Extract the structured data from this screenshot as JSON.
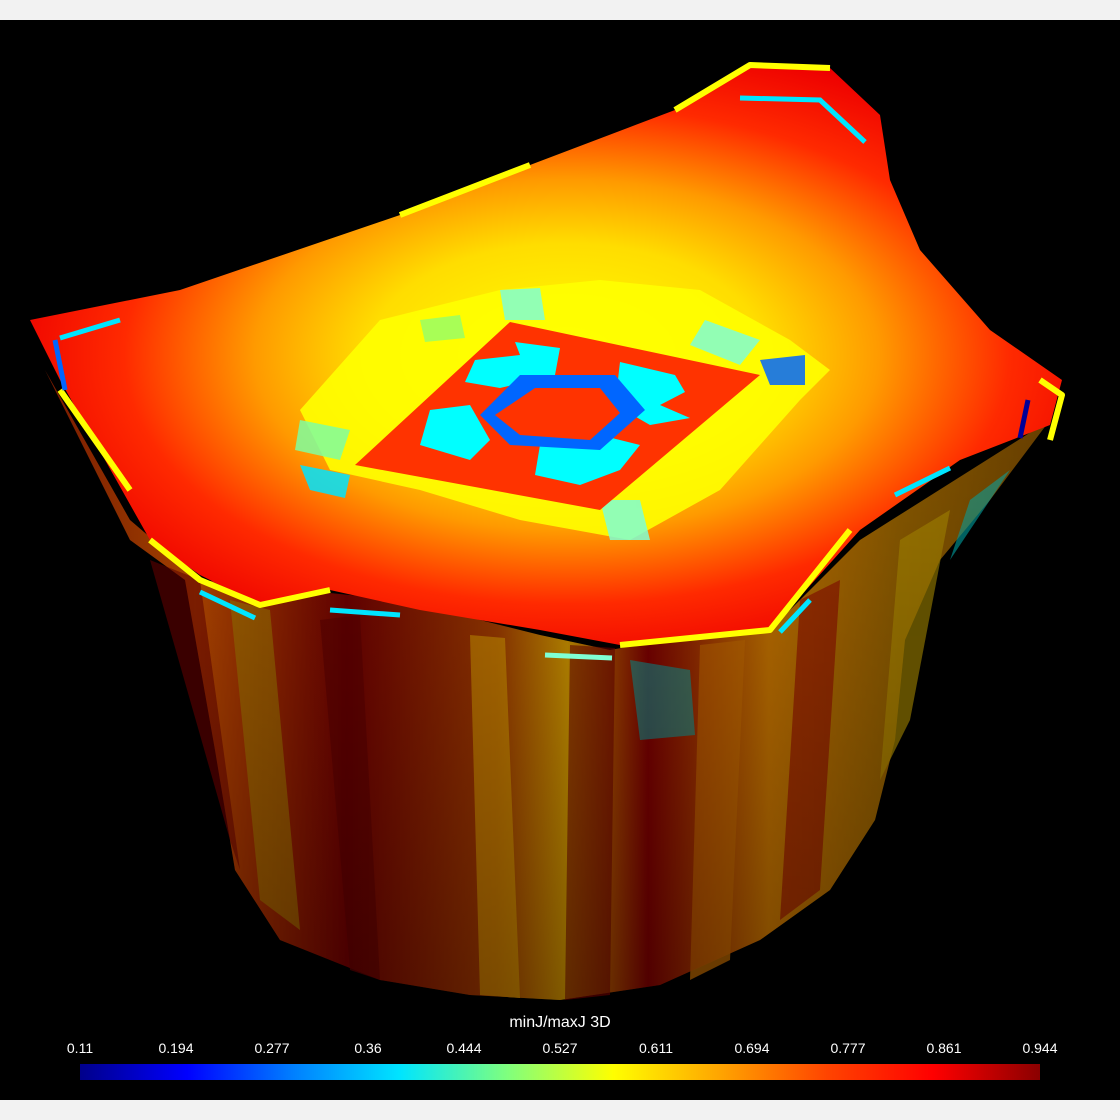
{
  "viewport": {
    "background": "#000000",
    "chrome_background": "#f2f2f2"
  },
  "mesh": {
    "description_type": "3D hexahedral mesh colored by element quality",
    "palette": {
      "dark_red": "#8b0000",
      "red": "#ff0000",
      "orange_red": "#ff4000",
      "orange": "#ff8c00",
      "amber": "#ffb000",
      "yellow": "#ffff00",
      "light_green": "#99ff66",
      "cyan": "#00ffff",
      "mid_blue": "#0066ff",
      "navy": "#000099"
    }
  },
  "legend": {
    "title": "minJ/maxJ 3D",
    "ticks": [
      "0.11",
      "0.194",
      "0.277",
      "0.36",
      "0.444",
      "0.527",
      "0.611",
      "0.694",
      "0.777",
      "0.861",
      "0.944"
    ],
    "range": [
      0.11,
      0.944
    ],
    "colormap": [
      "#00008b",
      "#0000ff",
      "#0080ff",
      "#00e5ff",
      "#7fff7f",
      "#ffff00",
      "#ffa500",
      "#ff4500",
      "#ff0000",
      "#8b0000"
    ]
  }
}
